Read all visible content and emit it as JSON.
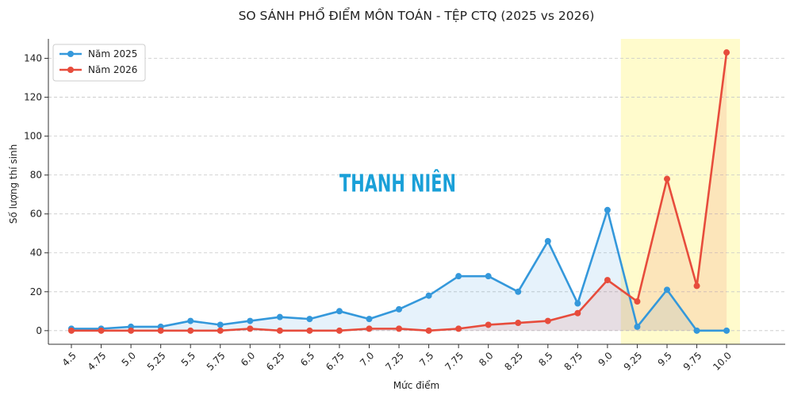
{
  "chart_data": {
    "type": "line",
    "title": "SO SÁNH PHỔ ĐIỂM MÔN TOÁN - TỆP CTQ (2025 vs 2026)",
    "xlabel": "Mức điểm",
    "ylabel": "Số lượng thí sinh",
    "categories": [
      "4.5",
      "4.75",
      "5.0",
      "5.25",
      "5.5",
      "5.75",
      "6.0",
      "6.25",
      "6.5",
      "6.75",
      "7.0",
      "7.25",
      "7.5",
      "7.75",
      "8.0",
      "8.25",
      "8.5",
      "8.75",
      "9.0",
      "9.25",
      "9.5",
      "9.75",
      "10.0"
    ],
    "series": [
      {
        "name": "Năm 2025",
        "color": "#3498db",
        "values": [
          1,
          1,
          2,
          2,
          5,
          3,
          5,
          7,
          6,
          10,
          6,
          11,
          18,
          28,
          28,
          20,
          46,
          14,
          62,
          2,
          21,
          0,
          0
        ]
      },
      {
        "name": "Năm 2026",
        "color": "#e74c3c",
        "values": [
          0,
          0,
          0,
          0,
          0,
          0,
          1,
          0,
          0,
          0,
          1,
          1,
          0,
          1,
          3,
          4,
          5,
          9,
          26,
          15,
          78,
          23,
          143
        ]
      }
    ],
    "ylim": [
      -7,
      150
    ],
    "yticks": [
      0,
      20,
      40,
      60,
      80,
      100,
      120,
      140
    ],
    "grid": "horizontal-dashed",
    "legend": "top-left",
    "highlight_range": [
      "9.25",
      "10.0"
    ],
    "highlight_color": "#fffbcc"
  },
  "watermark": {
    "text": "THANH NIÊN",
    "color": "#1aa0d8"
  }
}
